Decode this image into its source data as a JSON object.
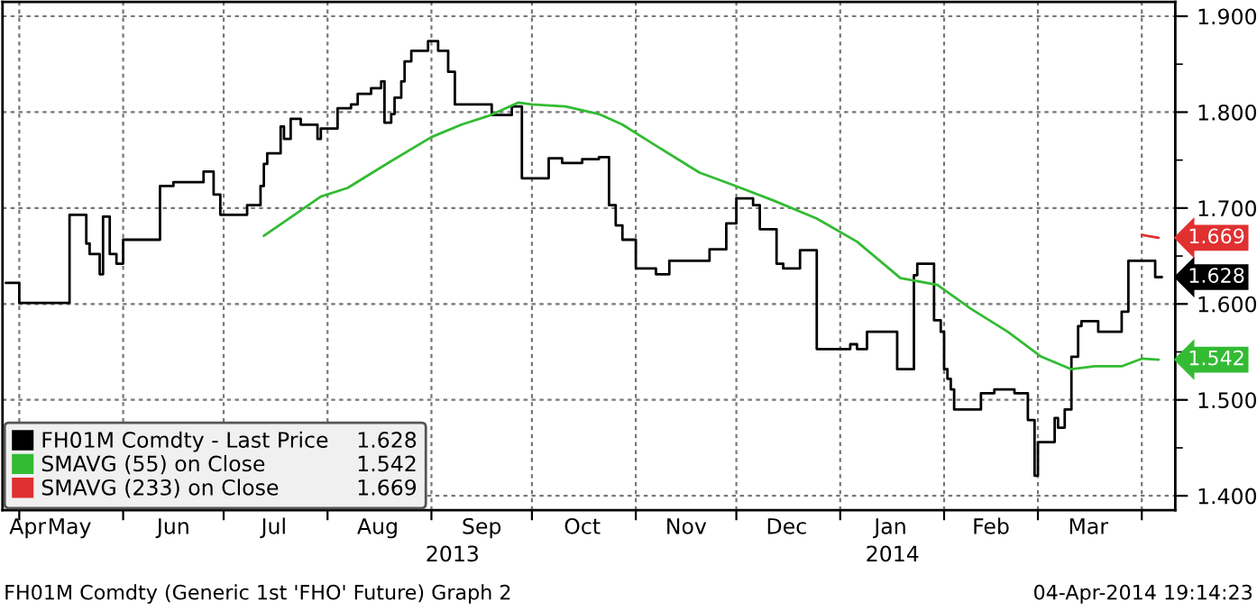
{
  "chart_data": {
    "type": "step",
    "series": [
      {
        "name": "FH01M Comdty - Last Price",
        "color": "#000000",
        "x": [
          "2013-04-27",
          "2013-05-01",
          "2013-05-16",
          "2013-05-21",
          "2013-05-22",
          "2013-05-25",
          "2013-05-26",
          "2013-05-28",
          "2013-05-30",
          "2013-06-01",
          "2013-06-12",
          "2013-06-16",
          "2013-06-25",
          "2013-06-28",
          "2013-06-30",
          "2013-07-08",
          "2013-07-12",
          "2013-07-13",
          "2013-07-14",
          "2013-07-18",
          "2013-07-19",
          "2013-07-21",
          "2013-07-24",
          "2013-07-29",
          "2013-07-30",
          "2013-08-04",
          "2013-08-08",
          "2013-08-10",
          "2013-08-14",
          "2013-08-17",
          "2013-08-18",
          "2013-08-20",
          "2013-08-21",
          "2013-08-23",
          "2013-08-24",
          "2013-08-26",
          "2013-08-31",
          "2013-09-03",
          "2013-09-06",
          "2013-09-08",
          "2013-09-19",
          "2013-09-25",
          "2013-09-28",
          "2013-10-06",
          "2013-10-10",
          "2013-10-16",
          "2013-10-21",
          "2013-10-24",
          "2013-10-26",
          "2013-10-28",
          "2013-11-01",
          "2013-11-07",
          "2013-11-11",
          "2013-11-23",
          "2013-11-28",
          "2013-12-01",
          "2013-12-06",
          "2013-12-08",
          "2013-12-13",
          "2013-12-15",
          "2013-12-20",
          "2013-12-25",
          "2014-01-04",
          "2014-01-06",
          "2014-01-09",
          "2014-01-18",
          "2014-01-23",
          "2014-01-24",
          "2014-01-29",
          "2014-01-31",
          "2014-02-01",
          "2014-02-02",
          "2014-02-03",
          "2014-02-04",
          "2014-02-12",
          "2014-02-16",
          "2014-02-22",
          "2014-02-26",
          "2014-02-28",
          "2014-03-01",
          "2014-03-06",
          "2014-03-07",
          "2014-03-09",
          "2014-03-11",
          "2014-03-13",
          "2014-03-14",
          "2014-03-19",
          "2014-03-26",
          "2014-03-28",
          "2014-04-05",
          "2014-04-07"
        ],
        "values": [
          1.622,
          1.601,
          1.693,
          1.663,
          1.652,
          1.631,
          1.691,
          1.652,
          1.642,
          1.667,
          1.723,
          1.727,
          1.738,
          1.714,
          1.693,
          1.703,
          1.723,
          1.746,
          1.757,
          1.785,
          1.772,
          1.793,
          1.787,
          1.772,
          1.783,
          1.804,
          1.808,
          1.819,
          1.825,
          1.832,
          1.789,
          1.798,
          1.815,
          1.832,
          1.853,
          1.864,
          1.874,
          1.864,
          1.842,
          1.808,
          1.797,
          1.806,
          1.731,
          1.752,
          1.747,
          1.751,
          1.753,
          1.703,
          1.682,
          1.667,
          1.637,
          1.631,
          1.645,
          1.657,
          1.684,
          1.71,
          1.703,
          1.678,
          1.642,
          1.637,
          1.656,
          1.553,
          1.558,
          1.553,
          1.571,
          1.532,
          1.63,
          1.642,
          1.583,
          1.571,
          1.532,
          1.522,
          1.511,
          1.49,
          1.507,
          1.511,
          1.507,
          1.479,
          1.421,
          1.456,
          1.481,
          1.471,
          1.49,
          1.545,
          1.577,
          1.582,
          1.571,
          1.592,
          1.645,
          1.628,
          1.628
        ],
        "value_labels": [
          null,
          null,
          null,
          null,
          null,
          null,
          null,
          null,
          null,
          null,
          null,
          null,
          null,
          null,
          null,
          null,
          null,
          null,
          null,
          null,
          null,
          null,
          null,
          null,
          null,
          null,
          null,
          null,
          null,
          null,
          null,
          null,
          null,
          null,
          null,
          null,
          null,
          null,
          null,
          null,
          null,
          null,
          null,
          null,
          null,
          null,
          null,
          null,
          null,
          null,
          null,
          null,
          null,
          null,
          null,
          null,
          null,
          null,
          null,
          null,
          null,
          null,
          null,
          null,
          null,
          null,
          null,
          null,
          null,
          null,
          null,
          null,
          null,
          null,
          null,
          null,
          null,
          null,
          null,
          null,
          null,
          null,
          null,
          null,
          null,
          null,
          null,
          null,
          null,
          null,
          "1.628"
        ]
      },
      {
        "name": "SMAVG (55) on Close",
        "type": "line",
        "color": "#33bb33",
        "x": [
          "2013-07-13",
          "2013-07-30",
          "2013-08-07",
          "2013-08-20",
          "2013-09-01",
          "2013-09-10",
          "2013-09-18",
          "2013-09-27",
          "2013-10-01",
          "2013-10-11",
          "2013-10-21",
          "2013-10-28",
          "2013-11-07",
          "2013-11-20",
          "2013-11-30",
          "2013-12-12",
          "2013-12-25",
          "2014-01-06",
          "2014-01-19",
          "2014-01-30",
          "2014-02-09",
          "2014-02-20",
          "2014-03-02",
          "2014-03-11",
          "2014-03-18",
          "2014-03-26",
          "2014-04-01",
          "2014-04-06"
        ],
        "values": [
          1.671,
          1.712,
          1.721,
          1.749,
          1.774,
          1.787,
          1.796,
          1.81,
          1.808,
          1.806,
          1.798,
          1.787,
          1.765,
          1.737,
          1.724,
          1.708,
          1.689,
          1.665,
          1.627,
          1.62,
          1.595,
          1.571,
          1.545,
          1.532,
          1.535,
          1.535,
          1.543,
          1.542
        ],
        "value_labels": [
          null,
          null,
          null,
          null,
          null,
          null,
          null,
          null,
          null,
          null,
          null,
          null,
          null,
          null,
          null,
          null,
          null,
          null,
          null,
          null,
          null,
          null,
          null,
          null,
          null,
          null,
          null,
          "1.542"
        ]
      },
      {
        "name": "SMAVG (233) on Close",
        "type": "line",
        "color": "#e03030",
        "x": [
          "2014-04-01",
          "2014-04-06"
        ],
        "values": [
          1.672,
          1.669
        ],
        "value_labels": [
          null,
          "1.669"
        ]
      }
    ],
    "xlim": [
      "2013-04-26",
      "2014-04-11"
    ],
    "xticks": [
      {
        "value": "2013-04-28",
        "label": "Apr"
      },
      {
        "value": "2013-05-01",
        "label": null
      },
      {
        "value": "2013-05-16",
        "label": "May"
      },
      {
        "value": "2013-06-01",
        "label": null
      },
      {
        "value": "2013-06-16",
        "label": "Jun"
      },
      {
        "value": "2013-07-01",
        "label": null
      },
      {
        "value": "2013-07-16",
        "label": "Jul"
      },
      {
        "value": "2013-08-01",
        "label": null
      },
      {
        "value": "2013-08-16",
        "label": "Aug"
      },
      {
        "value": "2013-09-01",
        "label": null
      },
      {
        "value": "2013-09-16",
        "label": "Sep"
      },
      {
        "value": "2013-10-01",
        "label": null
      },
      {
        "value": "2013-10-16",
        "label": "Oct"
      },
      {
        "value": "2013-11-01",
        "label": null
      },
      {
        "value": "2013-11-16",
        "label": "Nov"
      },
      {
        "value": "2013-12-01",
        "label": null
      },
      {
        "value": "2013-12-16",
        "label": "Dec"
      },
      {
        "value": "2014-01-01",
        "label": null
      },
      {
        "value": "2014-01-16",
        "label": "Jan"
      },
      {
        "value": "2014-02-01",
        "label": null
      },
      {
        "value": "2014-02-15",
        "label": "Feb"
      },
      {
        "value": "2014-03-01",
        "label": null
      },
      {
        "value": "2014-03-16",
        "label": "Mar"
      },
      {
        "value": "2014-04-01",
        "label": null
      }
    ],
    "ylim": [
      1.385,
      1.915
    ],
    "yticks": [
      {
        "value": 1.4,
        "label": "1.400"
      },
      {
        "value": 1.45,
        "label": null
      },
      {
        "value": 1.5,
        "label": "1.500"
      },
      {
        "value": 1.55,
        "label": null
      },
      {
        "value": 1.6,
        "label": "1.600"
      },
      {
        "value": 1.65,
        "label": null
      },
      {
        "value": 1.7,
        "label": "1.700"
      },
      {
        "value": 1.75,
        "label": null
      },
      {
        "value": 1.8,
        "label": "1.800"
      },
      {
        "value": 1.85,
        "label": null
      },
      {
        "value": 1.9,
        "label": "1.900"
      }
    ],
    "grid": true,
    "legend": "bottom left",
    "annotations": [
      "2013",
      "2014",
      "FH01M Comdty (Generic 1st 'FHO' Future) Graph 2",
      "04-Apr-2014 19:14:23"
    ]
  }
}
